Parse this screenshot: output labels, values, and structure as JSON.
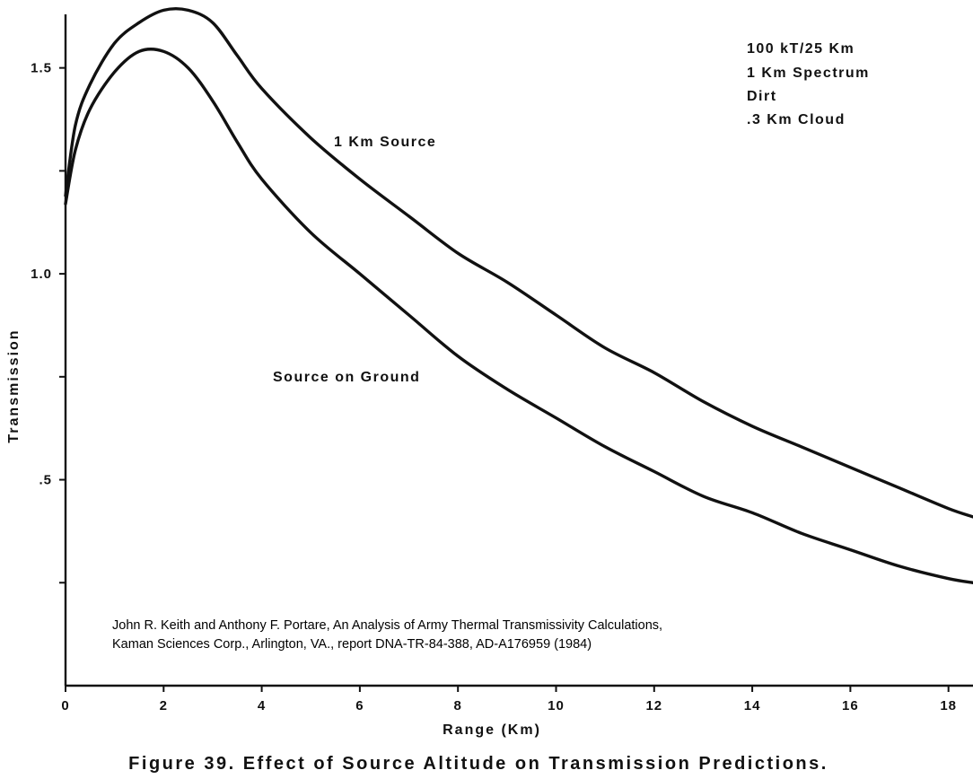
{
  "chart_data": {
    "type": "line",
    "xlabel": "Range (Km)",
    "ylabel": "Transmission",
    "xlim": [
      0,
      18.5
    ],
    "ylim": [
      0,
      1.63
    ],
    "x_ticks": [
      0,
      2,
      4,
      6,
      8,
      10,
      12,
      14,
      16,
      18
    ],
    "x_tick_labels": [
      "0",
      "2",
      "4",
      "6",
      "8",
      "10",
      "12",
      "14",
      "16",
      "18"
    ],
    "y_ticks": [
      0.25,
      0.5,
      0.75,
      1.0,
      1.25,
      1.5
    ],
    "y_tick_labels": [
      "",
      ".5",
      "",
      "1.0",
      "",
      "1.5"
    ],
    "series": [
      {
        "name": "1 Km Source",
        "x": [
          0,
          0.2,
          0.5,
          1.0,
          1.5,
          2.0,
          2.5,
          3.0,
          3.5,
          4.0,
          5.0,
          6.0,
          7.0,
          8.0,
          9.0,
          10.0,
          11.0,
          12.0,
          13.0,
          14.0,
          15.0,
          16.0,
          17.0,
          18.0,
          18.5
        ],
        "values": [
          1.19,
          1.36,
          1.46,
          1.56,
          1.61,
          1.64,
          1.64,
          1.61,
          1.53,
          1.45,
          1.33,
          1.23,
          1.14,
          1.05,
          0.98,
          0.9,
          0.82,
          0.76,
          0.69,
          0.63,
          0.58,
          0.53,
          0.48,
          0.43,
          0.41
        ]
      },
      {
        "name": "Source on Ground",
        "x": [
          0,
          0.2,
          0.5,
          1.0,
          1.5,
          2.0,
          2.5,
          3.0,
          3.5,
          4.0,
          5.0,
          6.0,
          7.0,
          8.0,
          9.0,
          10.0,
          11.0,
          12.0,
          13.0,
          14.0,
          15.0,
          16.0,
          17.0,
          18.0,
          18.5
        ],
        "values": [
          1.17,
          1.3,
          1.4,
          1.49,
          1.54,
          1.54,
          1.5,
          1.42,
          1.32,
          1.23,
          1.1,
          1.0,
          0.9,
          0.8,
          0.72,
          0.65,
          0.58,
          0.52,
          0.46,
          0.42,
          0.37,
          0.33,
          0.29,
          0.26,
          0.25
        ]
      }
    ],
    "series_labels": [
      "1 Km Source",
      "Source on Ground"
    ],
    "annotations": [
      "100 kT/25 Km",
      "1 Km Spectrum",
      "Dirt",
      ".3 Km Cloud"
    ],
    "citation": [
      "John R. Keith and Anthony F. Portare, An Analysis of Army Thermal Transmissivity Calculations,",
      "Kaman Sciences Corp., Arlington, VA., report DNA-TR-84-388, AD-A176959 (1984)"
    ],
    "caption": "Figure 39. Effect of Source Altitude on Transmission Predictions."
  }
}
